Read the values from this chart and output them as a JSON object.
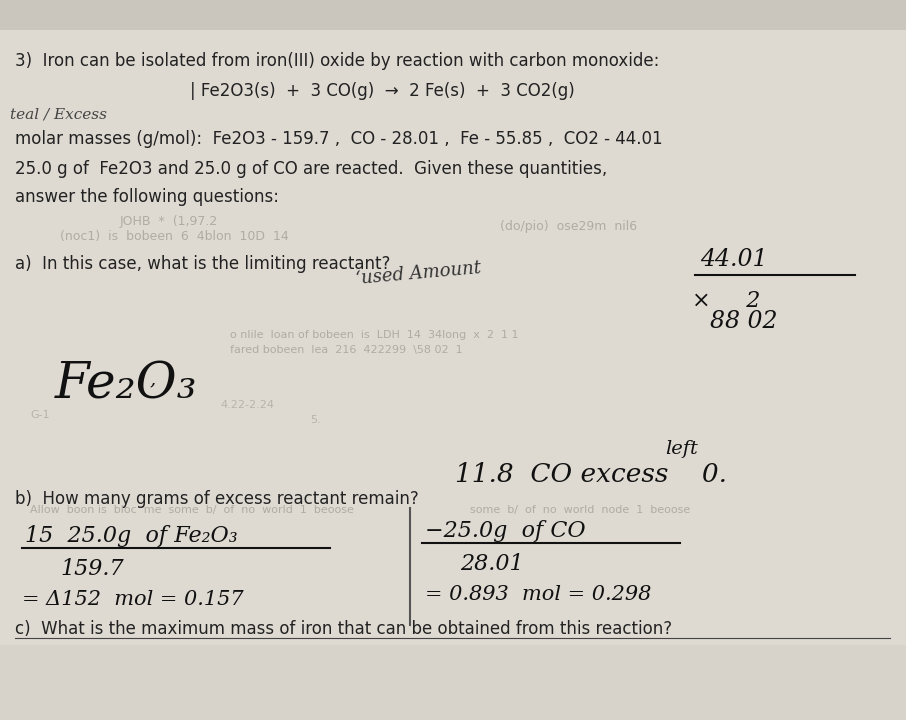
{
  "bg_color": "#c8c4bc",
  "paper_color": "#dedad2",
  "line1": "3)  Iron can be isolated from iron(III) oxide by reaction with carbon monoxide:",
  "line2a": "| Fe2O3(s)  +  3 CO(g)  →  2 Fe(s)  +  3 CO2(g)",
  "side_note": "teal / Excess",
  "molar_line": "molar masses (g/mol):  Fe2O3 - 159.7 ,  CO - 28.01 ,  Fe - 55.85 ,  CO2 - 44.01",
  "given_line": "25.0 g of  Fe2O3 and 25.0 g of CO are reacted.  Given these quantities,",
  "answer_line": "answer the following questions:",
  "qa": "a)  In this case, what is the limiting reactant?",
  "used_amount": "‘used Amount",
  "calc_44": "44.01",
  "calc_x2": "×     2",
  "calc_8802": "88 02",
  "answer_a": "Fe2O3",
  "left_note": "left",
  "excess_line": "11.8  CO excess    0.",
  "qb": "b)  How many grams of excess reactant remain?",
  "left1": "15  25.0g  of Fe2O3",
  "left2": "159.7",
  "left3": "= Δ152  mol = 0.157",
  "right1": "-25.0g  of CO",
  "right2": "28.01",
  "right3": "=0.893  mol = 0.298",
  "qc": "c)  What is the maximum mass of iron that can be obtained from this reaction?"
}
